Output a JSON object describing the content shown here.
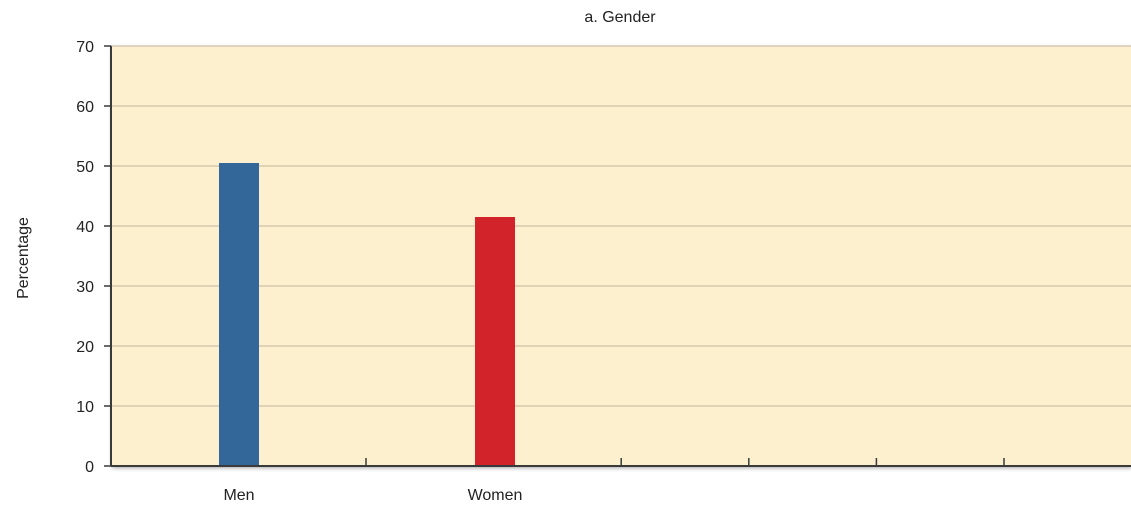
{
  "chart_data": {
    "type": "bar",
    "title": "a. Gender",
    "xlabel": "",
    "ylabel": "Percentage",
    "categories": [
      "Men",
      "Women"
    ],
    "values": [
      50.5,
      41.5
    ],
    "bar_colors": [
      "#336699",
      "#D2232A"
    ],
    "ylim": [
      0,
      70
    ],
    "yticks": [
      0,
      10,
      20,
      30,
      40,
      50,
      60,
      70
    ],
    "x_tick_slots": 7,
    "grid": true,
    "legend": "none",
    "colors": {
      "plot_background": "#FDF0CF",
      "gridline": "#C2B59B",
      "axis": "#3a3a3a"
    }
  }
}
